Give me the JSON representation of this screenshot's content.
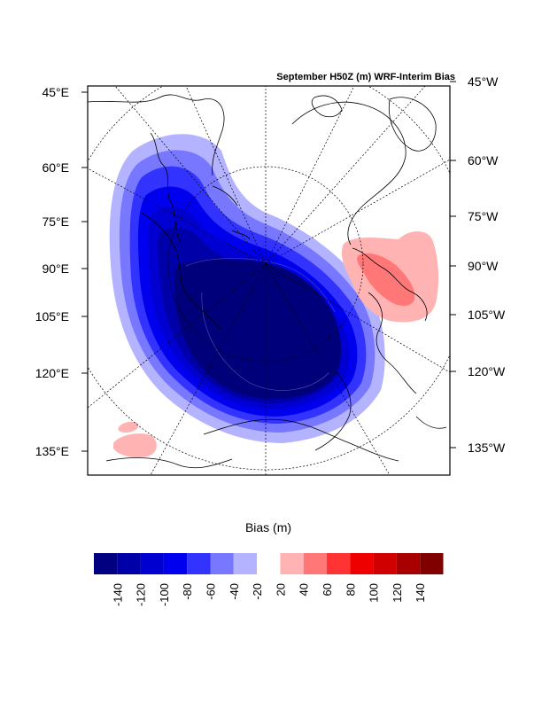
{
  "title": "September H50Z (m) WRF-Interim Bias",
  "left_labels": [
    "45°E",
    "60°E",
    "75°E",
    "90°E",
    "105°E",
    "120°E",
    "135°E"
  ],
  "right_labels": [
    "45°W",
    "60°W",
    "75°W",
    "90°W",
    "105°W",
    "120°W",
    "135°W"
  ],
  "colorbar": {
    "title": "Bias (m)",
    "tick_labels": [
      "-140",
      "-120",
      "-100",
      "-80",
      "-60",
      "-40",
      "-20",
      "20",
      "40",
      "60",
      "80",
      "100",
      "120",
      "140"
    ],
    "colors": [
      "#000080",
      "#0000a8",
      "#0000d0",
      "#0000ee",
      "#3333ff",
      "#7777ff",
      "#b3b3ff",
      "#ffffff",
      "#ffb3b3",
      "#ff7777",
      "#ff3333",
      "#ee0000",
      "#d00000",
      "#a80000",
      "#800000"
    ]
  },
  "colors": {
    "strong_negative": "#00007a",
    "negative": "#0000d0",
    "weak_negative": "#b3b3ff",
    "weak_positive": "#ffb3b3",
    "positive": "#ff7777"
  }
}
